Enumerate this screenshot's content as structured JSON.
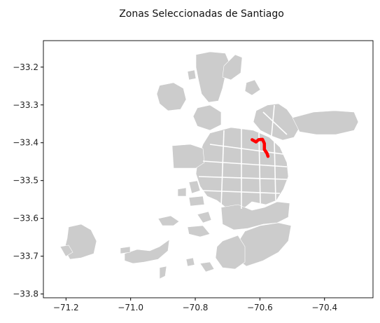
{
  "chart_data": {
    "type": "map",
    "title": "Zonas Seleccionadas de Santiago",
    "xlabel": "",
    "ylabel": "",
    "xlim": [
      -71.27,
      -70.25
    ],
    "ylim": [
      -33.81,
      -33.13
    ],
    "x_ticks": [
      -71.2,
      -71.0,
      -70.8,
      -70.6,
      -70.4
    ],
    "x_tick_labels": [
      "−71.2",
      "−71.0",
      "−70.8",
      "−70.6",
      "−70.4"
    ],
    "y_ticks": [
      -33.2,
      -33.3,
      -33.4,
      -33.5,
      -33.6,
      -33.7,
      -33.8
    ],
    "y_tick_labels": [
      "−33.2",
      "−33.3",
      "−33.4",
      "−33.5",
      "−33.6",
      "−33.7",
      "−33.8"
    ],
    "grid": false,
    "colors": {
      "zones": "#cccccc",
      "zone_border": "#ffffff",
      "highlight": "#ff0000",
      "axes": "#000000"
    },
    "highlighted_route": {
      "color": "#ff0000",
      "points": [
        [
          -70.624,
          -33.392
        ],
        [
          -70.612,
          -33.398
        ],
        [
          -70.604,
          -33.392
        ],
        [
          -70.592,
          -33.391
        ],
        [
          -70.586,
          -33.402
        ],
        [
          -70.586,
          -33.418
        ],
        [
          -70.578,
          -33.428
        ],
        [
          -70.575,
          -33.436
        ]
      ]
    }
  }
}
